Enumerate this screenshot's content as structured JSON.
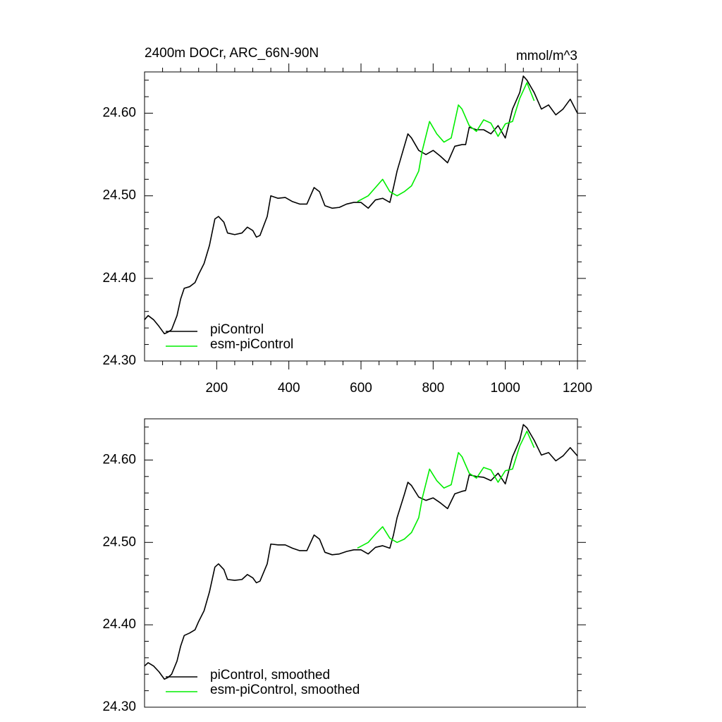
{
  "chart_data": [
    {
      "type": "line",
      "title": "2400m DOCr, ARC_66N-90N",
      "units": "mmol/m^3",
      "xlim": [
        0,
        1200
      ],
      "xticks": [
        200,
        400,
        600,
        800,
        1000,
        1200
      ],
      "ylim": [
        24.3,
        24.65
      ],
      "yticks": [
        {
          "value": 24.3,
          "label": "24.30"
        },
        {
          "value": 24.4,
          "label": "24.40"
        },
        {
          "value": 24.5,
          "label": "24.50"
        },
        {
          "value": 24.6,
          "label": "24.60"
        }
      ],
      "series": [
        {
          "name": "piControl",
          "color": "#000000",
          "x": [
            0,
            10,
            25,
            40,
            55,
            65,
            75,
            90,
            100,
            110,
            125,
            140,
            150,
            165,
            180,
            195,
            205,
            220,
            230,
            250,
            270,
            285,
            300,
            310,
            320,
            340,
            350,
            370,
            390,
            410,
            430,
            450,
            470,
            485,
            500,
            520,
            540,
            560,
            580,
            600,
            620,
            640,
            660,
            680,
            690,
            700,
            720,
            730,
            740,
            760,
            780,
            800,
            820,
            840,
            860,
            880,
            890,
            900,
            920,
            940,
            960,
            980,
            1000,
            1020,
            1040,
            1050,
            1060,
            1080,
            1100,
            1120,
            1140,
            1160,
            1180,
            1200
          ],
          "values": [
            24.35,
            24.355,
            24.35,
            24.342,
            24.333,
            24.335,
            24.338,
            24.355,
            24.375,
            24.388,
            24.39,
            24.395,
            24.405,
            24.418,
            24.44,
            24.472,
            24.475,
            24.468,
            24.455,
            24.453,
            24.455,
            24.462,
            24.458,
            24.45,
            24.452,
            24.475,
            24.5,
            24.497,
            24.498,
            24.493,
            24.49,
            24.49,
            24.51,
            24.505,
            24.488,
            24.485,
            24.486,
            24.49,
            24.492,
            24.492,
            24.485,
            24.495,
            24.497,
            24.492,
            24.51,
            24.53,
            24.56,
            24.575,
            24.57,
            24.555,
            24.55,
            24.555,
            24.548,
            24.54,
            24.56,
            24.562,
            24.562,
            24.583,
            24.58,
            24.58,
            24.575,
            24.585,
            24.57,
            24.605,
            24.625,
            24.645,
            24.64,
            24.625,
            24.605,
            24.61,
            24.598,
            24.605,
            24.617,
            24.6
          ]
        },
        {
          "name": "esm-piControl",
          "color": "#00ee00",
          "x": [
            590,
            620,
            640,
            660,
            680,
            700,
            720,
            740,
            760,
            770,
            790,
            810,
            830,
            850,
            870,
            880,
            900,
            920,
            940,
            960,
            980,
            1000,
            1020,
            1040,
            1060,
            1080
          ],
          "values": [
            24.493,
            24.5,
            24.51,
            24.52,
            24.505,
            24.5,
            24.505,
            24.512,
            24.53,
            24.555,
            24.59,
            24.575,
            24.565,
            24.57,
            24.61,
            24.605,
            24.585,
            24.578,
            24.592,
            24.588,
            24.572,
            24.587,
            24.59,
            24.618,
            24.637,
            24.615
          ]
        }
      ]
    },
    {
      "type": "line",
      "xlim": [
        0,
        1200
      ],
      "ylim": [
        24.3,
        24.65
      ],
      "yticks": [
        {
          "value": 24.3,
          "label": "24.30"
        },
        {
          "value": 24.4,
          "label": "24.40"
        },
        {
          "value": 24.5,
          "label": "24.50"
        },
        {
          "value": 24.6,
          "label": "24.60"
        }
      ],
      "series": [
        {
          "name": "piControl, smoothed",
          "color": "#000000",
          "x": [
            0,
            10,
            25,
            40,
            55,
            65,
            75,
            90,
            100,
            110,
            125,
            140,
            150,
            165,
            180,
            195,
            205,
            220,
            230,
            250,
            270,
            285,
            300,
            310,
            320,
            340,
            350,
            370,
            390,
            410,
            430,
            450,
            470,
            485,
            500,
            520,
            540,
            560,
            580,
            600,
            620,
            640,
            660,
            680,
            690,
            700,
            720,
            730,
            740,
            760,
            780,
            800,
            820,
            840,
            860,
            880,
            890,
            900,
            920,
            940,
            960,
            980,
            1000,
            1020,
            1040,
            1050,
            1060,
            1080,
            1100,
            1120,
            1140,
            1160,
            1180,
            1200
          ],
          "values": [
            24.35,
            24.354,
            24.35,
            24.343,
            24.334,
            24.336,
            24.34,
            24.356,
            24.374,
            24.387,
            24.39,
            24.394,
            24.404,
            24.417,
            24.44,
            24.47,
            24.474,
            24.467,
            24.455,
            24.454,
            24.455,
            24.461,
            24.457,
            24.451,
            24.453,
            24.474,
            24.498,
            24.497,
            24.497,
            24.493,
            24.49,
            24.49,
            24.509,
            24.504,
            24.488,
            24.485,
            24.486,
            24.489,
            24.491,
            24.491,
            24.486,
            24.494,
            24.496,
            24.493,
            24.509,
            24.53,
            24.558,
            24.573,
            24.569,
            24.555,
            24.551,
            24.554,
            24.548,
            24.541,
            24.559,
            24.562,
            24.563,
            24.582,
            24.58,
            24.579,
            24.575,
            24.584,
            24.571,
            24.604,
            24.624,
            24.643,
            24.639,
            24.624,
            24.606,
            24.609,
            24.599,
            24.605,
            24.615,
            24.605
          ]
        },
        {
          "name": "esm-piControl, smoothed",
          "color": "#00ee00",
          "x": [
            590,
            620,
            640,
            660,
            680,
            700,
            720,
            740,
            760,
            770,
            790,
            810,
            830,
            850,
            870,
            880,
            900,
            920,
            940,
            960,
            980,
            1000,
            1020,
            1040,
            1060,
            1080
          ],
          "values": [
            24.493,
            24.5,
            24.51,
            24.519,
            24.505,
            24.5,
            24.504,
            24.512,
            24.53,
            24.554,
            24.589,
            24.575,
            24.566,
            24.57,
            24.609,
            24.604,
            24.584,
            24.578,
            24.591,
            24.588,
            24.573,
            24.587,
            24.589,
            24.617,
            24.635,
            24.615
          ]
        }
      ]
    }
  ]
}
